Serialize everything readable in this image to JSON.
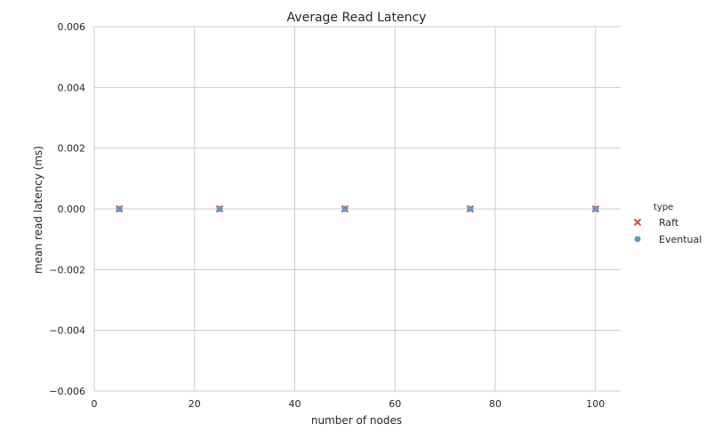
{
  "chart_data": {
    "type": "scatter",
    "title": "Average Read Latency",
    "xlabel": "number of nodes",
    "ylabel": "mean read latency (ms)",
    "xlim": [
      0,
      105
    ],
    "ylim": [
      -0.006,
      0.006
    ],
    "xticks": [
      0,
      20,
      40,
      60,
      80,
      100
    ],
    "yticks": [
      -0.006,
      -0.004,
      -0.002,
      0.0,
      0.002,
      0.004,
      0.006
    ],
    "xtick_labels": [
      "0",
      "20",
      "40",
      "60",
      "80",
      "100"
    ],
    "ytick_labels": [
      "−0.006",
      "−0.004",
      "−0.002",
      "0.000",
      "0.002",
      "0.004",
      "0.006"
    ],
    "grid": true,
    "legend": {
      "title": "type",
      "placement": "right"
    },
    "series": [
      {
        "name": "Raft",
        "marker": "x",
        "color": "#e3474f",
        "x": [
          5,
          25,
          50,
          75,
          100
        ],
        "y": [
          0,
          0,
          0,
          0,
          0
        ]
      },
      {
        "name": "Eventual",
        "marker": "o",
        "color": "#6a96c4",
        "x": [
          5,
          25,
          50,
          75,
          100
        ],
        "y": [
          0,
          0,
          0,
          0,
          0
        ]
      }
    ]
  }
}
